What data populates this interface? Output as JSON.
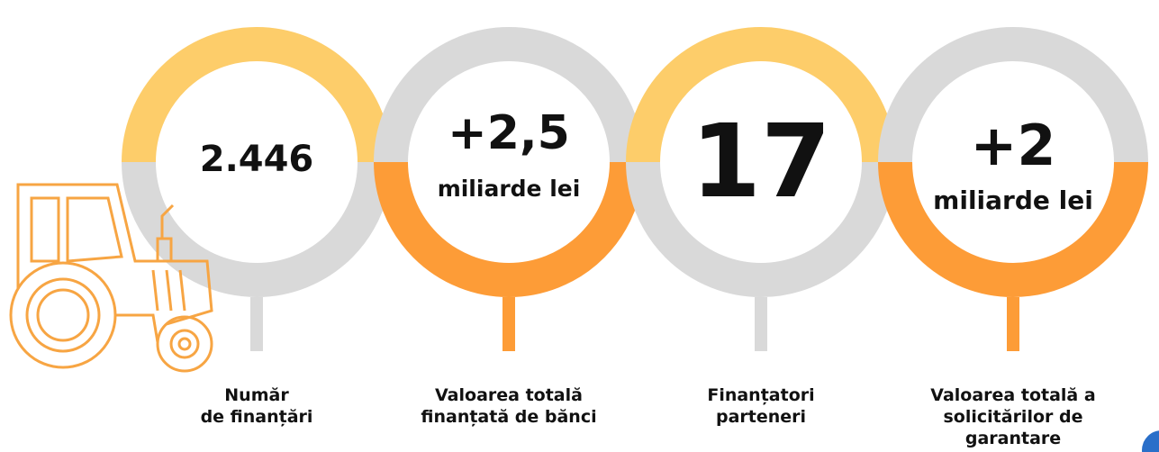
{
  "items": [
    {
      "value": "2.446",
      "label": [
        "Număr",
        "de finanțări"
      ]
    },
    {
      "value": "+2,5",
      "unit": "miliarde lei",
      "label": [
        "Valoarea totală",
        "finanțată de bănci"
      ]
    },
    {
      "value": "17",
      "label": [
        "Finanțatori",
        "parteneri"
      ]
    },
    {
      "value": "+2",
      "unit": "miliarde lei",
      "label": [
        "Valoarea totală a",
        "solicitărilor de",
        "garantare"
      ]
    }
  ]
}
